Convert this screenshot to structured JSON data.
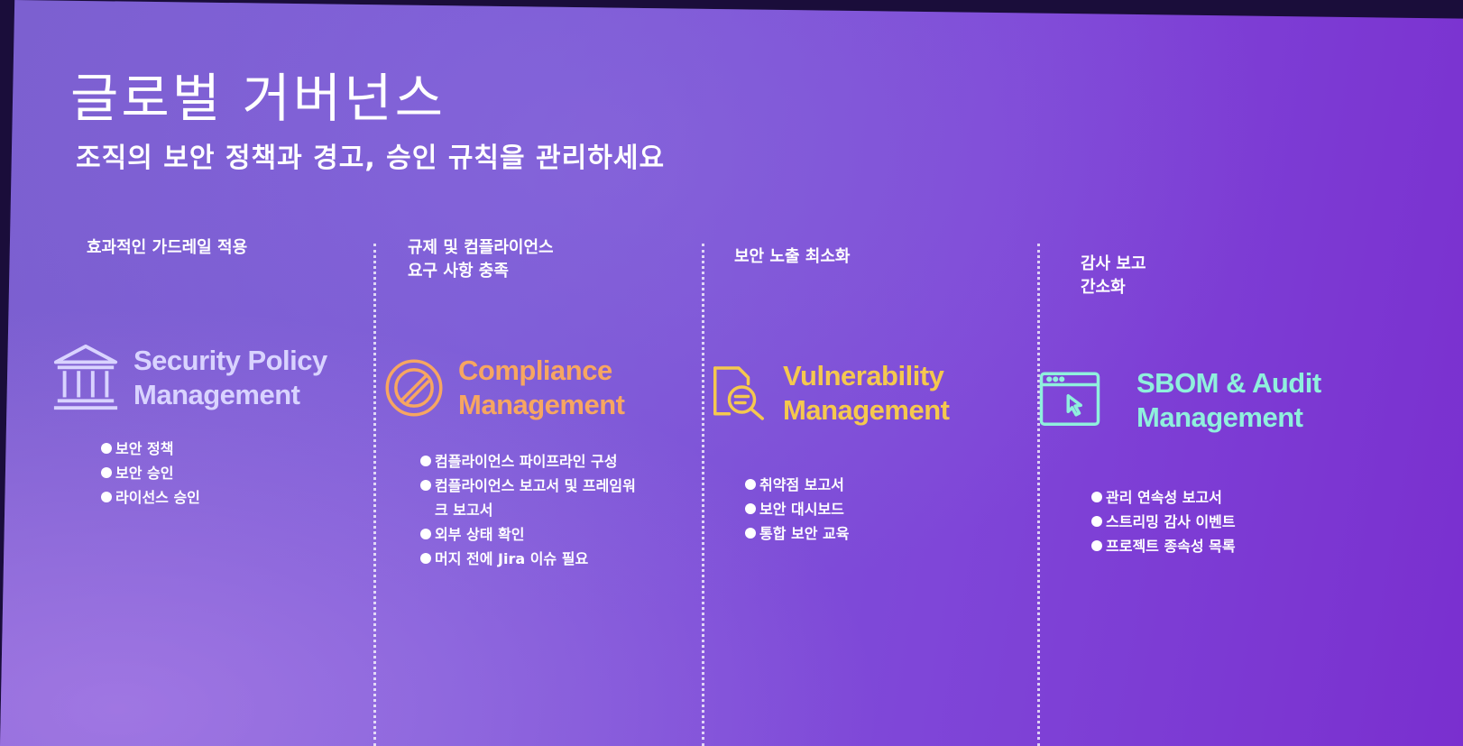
{
  "title": "글로벌 거버넌스",
  "subtitle": "조직의 보안 정책과 경고, 승인 규칙을 관리하세요",
  "columns": [
    {
      "heading": "효과적인 가드레일 적용",
      "icon": "institution-icon",
      "product": "Security Policy\nManagement",
      "color": "#d9d3ff",
      "features": [
        "보안 정책",
        "보안 승인",
        "라이선스 승인"
      ]
    },
    {
      "heading": "규제 및 컴플라이언스\n요구 사항 충족",
      "icon": "no-entry-icon",
      "product": "Compliance\nManagement",
      "color": "#f7a661",
      "features": [
        "컴플라이언스 파이프라인 구성",
        "컴플라이언스 보고서 및 프레임워크 보고서",
        "외부 상태 확인",
        "머지 전에 Jira 이슈 필요"
      ]
    },
    {
      "heading": "보안 노출 최소화",
      "icon": "document-search-icon",
      "product": "Vulnerability\nManagement",
      "color": "#f5c84e",
      "features": [
        "취약점 보고서",
        "보안 대시보드",
        "통합 보안 교육"
      ]
    },
    {
      "heading": "감사 보고\n간소화",
      "icon": "browser-window-icon",
      "product": "SBOM & Audit\nManagement",
      "color": "#8ff0dd",
      "features": [
        "관리 연속성 보고서",
        "스트리밍 감사 이벤트",
        "프로젝트 종속성 목록"
      ]
    }
  ]
}
